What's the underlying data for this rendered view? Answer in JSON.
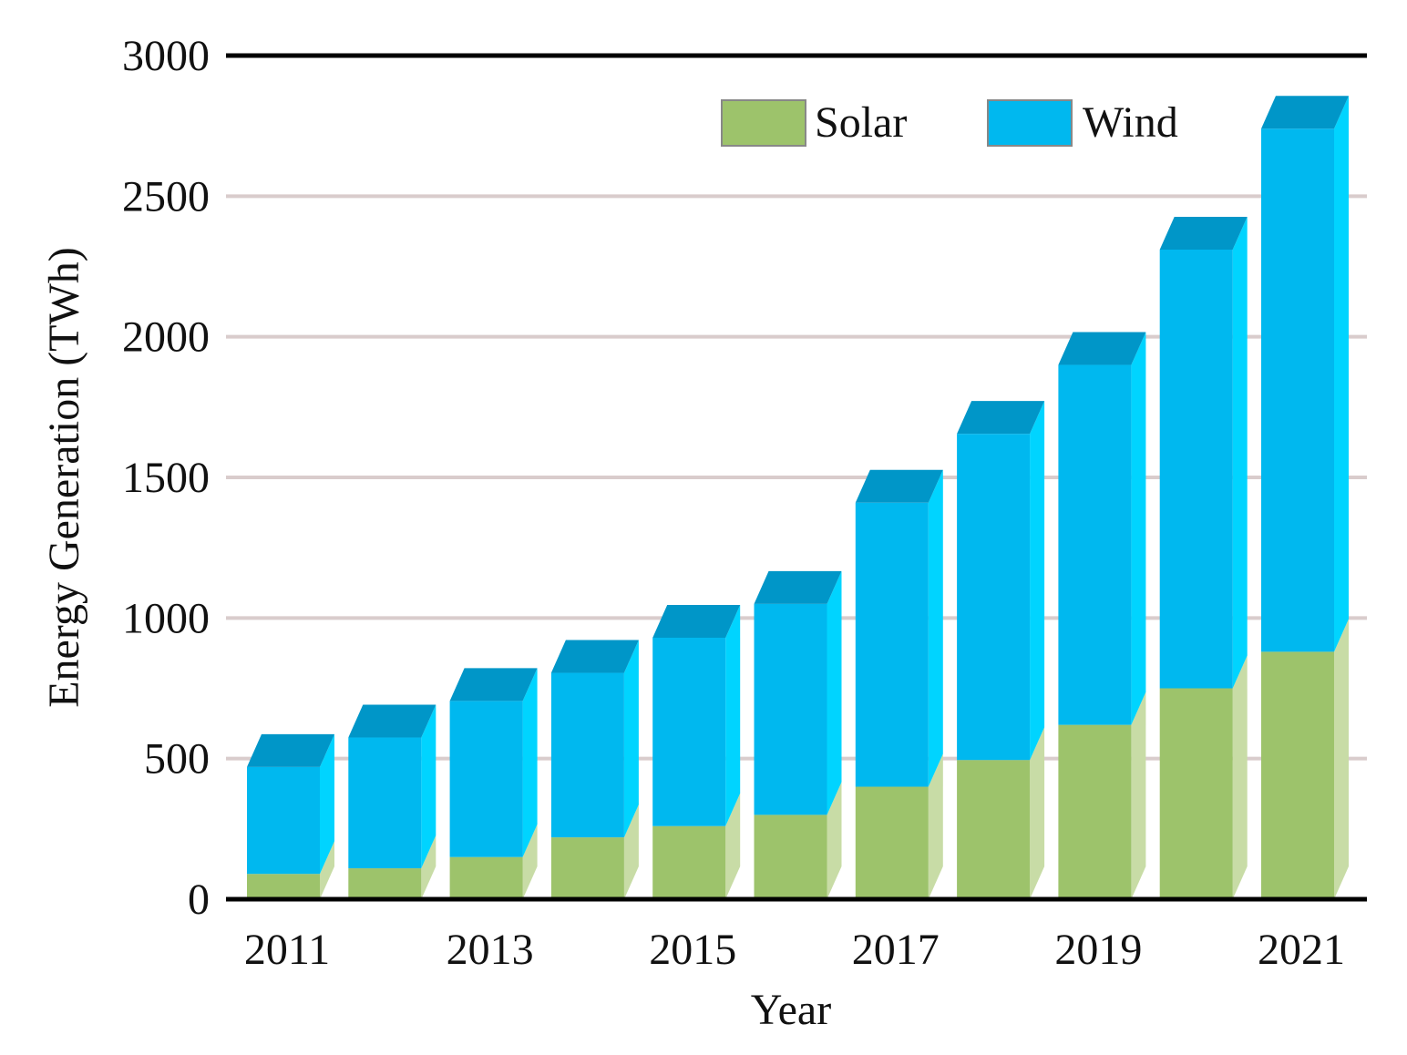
{
  "chart_data": {
    "type": "bar",
    "stacked": true,
    "style": "3d",
    "title": "",
    "xlabel": "Year",
    "ylabel": "Energy Generation (TWh)",
    "ylim": [
      0,
      3000
    ],
    "yticks": [
      0,
      500,
      1000,
      1500,
      2000,
      2500,
      3000
    ],
    "grid": true,
    "legend": "top-right",
    "categories": [
      "2011",
      "2012",
      "2013",
      "2014",
      "2015",
      "2016",
      "2017",
      "2018",
      "2019",
      "2020",
      "2021"
    ],
    "xtick_labels": [
      "2011",
      "",
      "2013",
      "",
      "2015",
      "",
      "2017",
      "",
      "2019",
      "",
      "2021"
    ],
    "series": [
      {
        "name": "Solar",
        "color": "#9dc36b",
        "side_color": "#c8dca6",
        "values": [
          90,
          110,
          150,
          220,
          260,
          300,
          400,
          495,
          620,
          750,
          880
        ]
      },
      {
        "name": "Wind",
        "color": "#00b8ef",
        "side_color": "#00d4ff",
        "top_color": "#0096c8",
        "values": [
          380,
          465,
          555,
          585,
          670,
          750,
          1010,
          1160,
          1280,
          1560,
          1860
        ]
      }
    ]
  }
}
